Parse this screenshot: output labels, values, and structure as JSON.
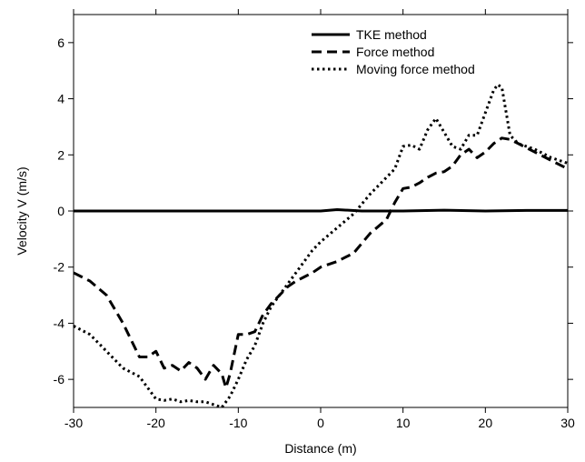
{
  "chart_data": {
    "type": "line",
    "xlabel": "Distance (m)",
    "ylabel": "Velocity V (m/s)",
    "xlim": [
      -30,
      30
    ],
    "ylim": [
      -7,
      7
    ],
    "xticks": [
      -30,
      -20,
      -10,
      0,
      10,
      20,
      30
    ],
    "yticks": [
      -6,
      -4,
      -2,
      0,
      2,
      4,
      6
    ],
    "x_tick_labels": [
      "-30",
      "-20",
      "-10",
      "0",
      "10",
      "20",
      "30"
    ],
    "y_tick_labels": [
      "-6",
      "-4",
      "-2",
      "0",
      "2",
      "4",
      "6"
    ],
    "grid": false,
    "legend_position": "top-right",
    "series": [
      {
        "name": "TKE method",
        "style": "solid",
        "color": "#000000",
        "x": [
          -30,
          -20,
          -10,
          0,
          2,
          5,
          10,
          15,
          20,
          25,
          30
        ],
        "y": [
          0,
          0,
          0,
          0,
          0.05,
          0,
          0,
          0.03,
          0,
          0.02,
          0.02
        ]
      },
      {
        "name": "Force method",
        "style": "dashed",
        "color": "#000000",
        "x": [
          -30,
          -28,
          -26,
          -24,
          -22,
          -21,
          -20,
          -19,
          -18,
          -17,
          -16,
          -15,
          -14,
          -13,
          -12,
          -11.5,
          -11,
          -10,
          -9,
          -8,
          -7,
          -6,
          -5,
          -4,
          -3,
          -2,
          -1,
          0,
          2,
          4,
          6,
          8,
          9,
          10,
          11,
          12,
          13,
          14,
          15,
          16,
          17,
          18,
          19,
          20,
          21,
          22,
          23,
          24,
          26,
          28,
          30
        ],
        "y": [
          -2.2,
          -2.5,
          -3.0,
          -4.0,
          -5.2,
          -5.2,
          -5.0,
          -5.6,
          -5.5,
          -5.7,
          -5.4,
          -5.6,
          -6.0,
          -5.5,
          -5.8,
          -6.3,
          -5.8,
          -4.4,
          -4.4,
          -4.3,
          -3.7,
          -3.3,
          -3.0,
          -2.7,
          -2.5,
          -2.35,
          -2.2,
          -2.0,
          -1.8,
          -1.5,
          -0.8,
          -0.3,
          0.3,
          0.8,
          0.85,
          1.0,
          1.2,
          1.35,
          1.4,
          1.6,
          2.0,
          2.2,
          1.9,
          2.1,
          2.4,
          2.6,
          2.55,
          2.4,
          2.1,
          1.8,
          1.5
        ]
      },
      {
        "name": "Moving force method",
        "style": "dotted",
        "color": "#000000",
        "x": [
          -30,
          -28,
          -26,
          -24,
          -22,
          -20,
          -19,
          -18,
          -17,
          -16,
          -15,
          -14,
          -13,
          -12,
          -11,
          -10,
          -9,
          -8,
          -7,
          -6,
          -5,
          -4,
          -3,
          -2,
          -1,
          0,
          2,
          4,
          6,
          8,
          9,
          10,
          11,
          12,
          13,
          14,
          15,
          16,
          17,
          18,
          19,
          20,
          21,
          21.5,
          22,
          23,
          24,
          26,
          28,
          30
        ],
        "y": [
          -4.1,
          -4.4,
          -5.0,
          -5.6,
          -5.9,
          -6.7,
          -6.75,
          -6.7,
          -6.8,
          -6.75,
          -6.8,
          -6.8,
          -6.9,
          -7.0,
          -6.6,
          -6.0,
          -5.3,
          -4.8,
          -4.0,
          -3.4,
          -3.0,
          -2.6,
          -2.2,
          -1.8,
          -1.4,
          -1.1,
          -0.6,
          -0.1,
          0.6,
          1.2,
          1.5,
          2.3,
          2.35,
          2.2,
          2.9,
          3.3,
          2.8,
          2.3,
          2.2,
          2.7,
          2.7,
          3.5,
          4.3,
          4.5,
          4.4,
          2.7,
          2.4,
          2.2,
          1.9,
          1.7
        ]
      }
    ]
  }
}
